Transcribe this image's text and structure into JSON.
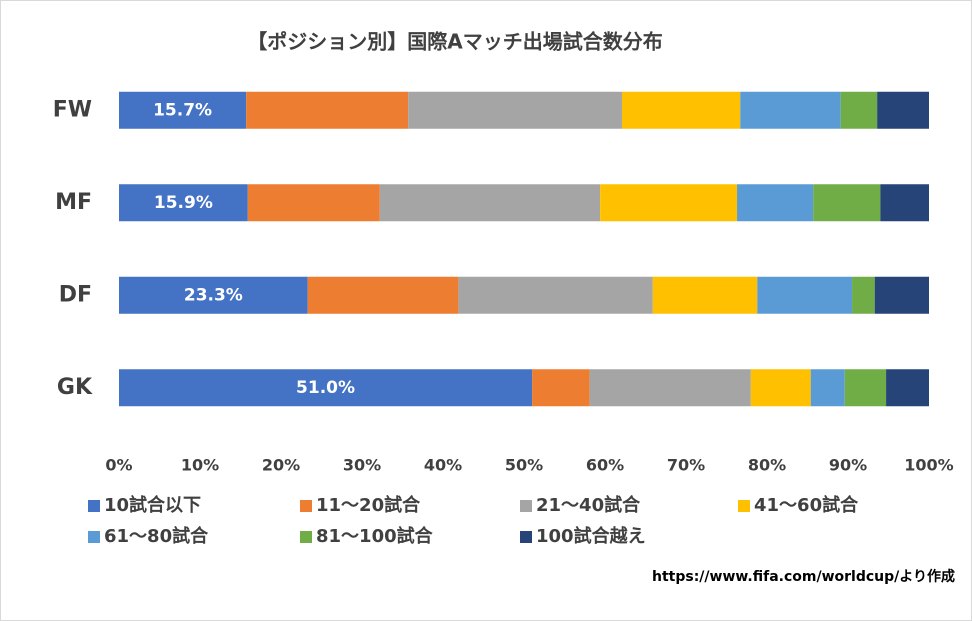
{
  "chart_data": {
    "type": "stacked_barh",
    "title": "【ポジション別】国際Aマッチ出場試合数分布",
    "categories": [
      "FW",
      "MF",
      "DF",
      "GK"
    ],
    "series": [
      {
        "name": "10試合以下",
        "color": "#4472c4",
        "values": [
          15.7,
          15.9,
          23.3,
          51.0
        ],
        "value_labels": [
          "15.7%",
          "15.9%",
          "23.3%",
          "51.0%"
        ]
      },
      {
        "name": "11〜20試合",
        "color": "#ed7d31",
        "values": [
          20.0,
          16.3,
          18.6,
          7.1
        ]
      },
      {
        "name": "21〜40試合",
        "color": "#a5a5a5",
        "values": [
          26.4,
          27.2,
          24.0,
          19.9
        ]
      },
      {
        "name": "41〜60試合",
        "color": "#ffc000",
        "values": [
          14.6,
          16.9,
          12.9,
          7.4
        ]
      },
      {
        "name": "61〜80試合",
        "color": "#5b9bd5",
        "values": [
          12.4,
          9.4,
          11.7,
          4.2
        ]
      },
      {
        "name": "81〜100試合",
        "color": "#70ad47",
        "values": [
          4.5,
          8.3,
          2.8,
          5.1
        ]
      },
      {
        "name": "100試合越え",
        "color": "#264478",
        "values": [
          6.4,
          6.0,
          6.7,
          5.3
        ]
      }
    ],
    "xlim": [
      0,
      100
    ],
    "xticks": [
      {
        "value": 0,
        "label": "0%"
      },
      {
        "value": 10,
        "label": "10%"
      },
      {
        "value": 20,
        "label": "20%"
      },
      {
        "value": 30,
        "label": "30%"
      },
      {
        "value": 40,
        "label": "40%"
      },
      {
        "value": 50,
        "label": "50%"
      },
      {
        "value": 60,
        "label": "60%"
      },
      {
        "value": 70,
        "label": "70%"
      },
      {
        "value": 80,
        "label": "80%"
      },
      {
        "value": 90,
        "label": "90%"
      },
      {
        "value": 100,
        "label": "100%"
      }
    ],
    "grid": false,
    "source": "https://www.fifa.com/worldcup/より作成"
  }
}
